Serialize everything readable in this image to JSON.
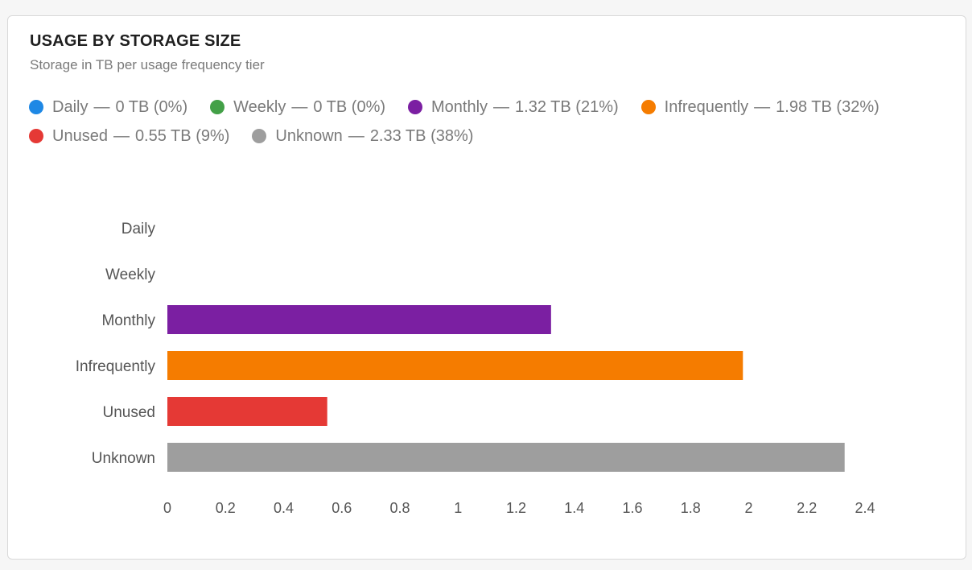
{
  "card": {
    "title": "USAGE BY STORAGE SIZE",
    "subtitle": "Storage in TB per usage frequency tier"
  },
  "legend": [
    {
      "label": "Daily",
      "value": "0 TB",
      "percent": "(0%)",
      "color": "#1e88e5"
    },
    {
      "label": "Weekly",
      "value": "0 TB",
      "percent": "(0%)",
      "color": "#43a047"
    },
    {
      "label": "Monthly",
      "value": "1.32 TB",
      "percent": "(21%)",
      "color": "#7b1fa2"
    },
    {
      "label": "Infrequently",
      "value": "1.98 TB",
      "percent": "(32%)",
      "color": "#f57c00"
    },
    {
      "label": "Unused",
      "value": "0.55 TB",
      "percent": "(9%)",
      "color": "#e53935"
    },
    {
      "label": "Unknown",
      "value": "2.33 TB",
      "percent": "(38%)",
      "color": "#9e9e9e"
    }
  ],
  "legend_separator": "—",
  "chart_data": {
    "type": "bar",
    "orientation": "horizontal",
    "title": "USAGE BY STORAGE SIZE",
    "subtitle": "Storage in TB per usage frequency tier",
    "categories": [
      "Daily",
      "Weekly",
      "Monthly",
      "Infrequently",
      "Unused",
      "Unknown"
    ],
    "values": [
      0,
      0,
      1.32,
      1.98,
      0.55,
      2.33
    ],
    "colors": [
      "#1e88e5",
      "#43a047",
      "#7b1fa2",
      "#f57c00",
      "#e53935",
      "#9e9e9e"
    ],
    "xlim": [
      0,
      2.4
    ],
    "xticks": [
      "0",
      "0.2",
      "0.4",
      "0.6",
      "0.8",
      "1",
      "1.2",
      "1.4",
      "1.6",
      "1.8",
      "2",
      "2.2",
      "2.4"
    ],
    "xlabel": "",
    "ylabel": "",
    "grid": false,
    "legend_position": "top"
  }
}
